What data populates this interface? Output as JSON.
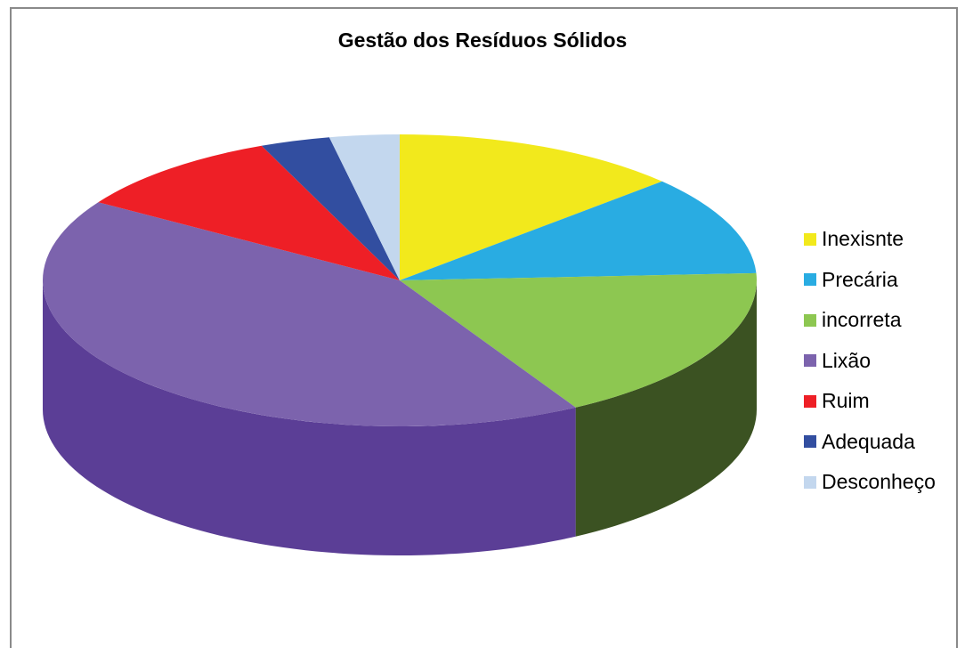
{
  "chart_data": {
    "type": "pie",
    "title": "Gestão dos Resíduos Sólidos",
    "categories": [
      "Inexisnte",
      "Precária",
      "incorreta",
      "Lixão",
      "Ruim",
      "Adequada",
      "Desconheço"
    ],
    "values": [
      13.3,
      11.2,
      17.8,
      42.7,
      9.8,
      3.2,
      3.2
    ],
    "colors": [
      "#f2e91c",
      "#29ace2",
      "#8dc751",
      "#7c63ad",
      "#ee1f26",
      "#324ea0",
      "#c3d7ee"
    ],
    "side_colors": [
      "#8a8510",
      "#16648a",
      "#3b5222",
      "#5b3e96",
      "#8a1015",
      "#1c2c5c",
      "#7a8aa0"
    ],
    "legend": "right",
    "style": "3d"
  }
}
